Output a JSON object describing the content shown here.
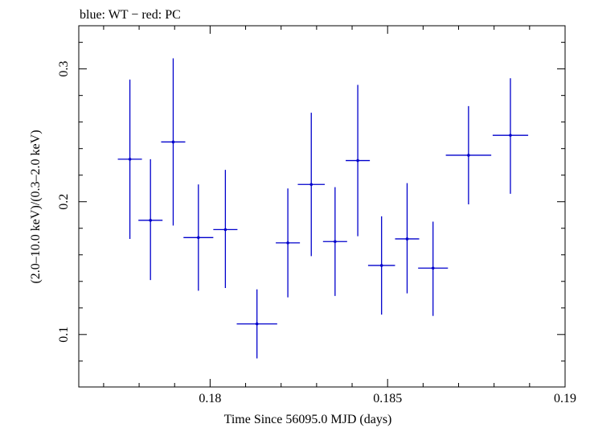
{
  "chart_data": {
    "type": "scatter",
    "title": "blue: WT − red: PC",
    "xlabel": "Time Since 56095.0 MJD (days)",
    "ylabel": "(2.0–10.0 keV)/(0.3–2.0 keV)",
    "xlim": [
      0.1763,
      0.19
    ],
    "ylim": [
      0.0605,
      0.3325
    ],
    "x_ticks": [
      {
        "value": 0.18,
        "label": "0.18"
      },
      {
        "value": 0.185,
        "label": "0.185"
      },
      {
        "value": 0.19,
        "label": "0.19"
      }
    ],
    "y_ticks": [
      {
        "value": 0.1,
        "label": "0.1"
      },
      {
        "value": 0.2,
        "label": "0.2"
      },
      {
        "value": 0.3,
        "label": "0.3"
      }
    ],
    "x_minor_step": 0.001,
    "y_minor_step": 0.02,
    "grid": false,
    "series": [
      {
        "color": "#0000cc",
        "points": [
          {
            "x": 0.17774,
            "xerr": 0.00034,
            "y": 0.232,
            "ylo": 0.172,
            "yhi": 0.292
          },
          {
            "x": 0.17832,
            "xerr": 0.00034,
            "y": 0.186,
            "ylo": 0.141,
            "yhi": 0.232
          },
          {
            "x": 0.17896,
            "xerr": 0.00034,
            "y": 0.245,
            "ylo": 0.182,
            "yhi": 0.308
          },
          {
            "x": 0.17967,
            "xerr": 0.00042,
            "y": 0.173,
            "ylo": 0.133,
            "yhi": 0.213
          },
          {
            "x": 0.18043,
            "xerr": 0.00034,
            "y": 0.179,
            "ylo": 0.135,
            "yhi": 0.224
          },
          {
            "x": 0.18132,
            "xerr": 0.00057,
            "y": 0.108,
            "ylo": 0.082,
            "yhi": 0.134
          },
          {
            "x": 0.18219,
            "xerr": 0.00034,
            "y": 0.169,
            "ylo": 0.128,
            "yhi": 0.21
          },
          {
            "x": 0.18285,
            "xerr": 0.00038,
            "y": 0.213,
            "ylo": 0.159,
            "yhi": 0.267
          },
          {
            "x": 0.18352,
            "xerr": 0.00034,
            "y": 0.17,
            "ylo": 0.129,
            "yhi": 0.211
          },
          {
            "x": 0.18416,
            "xerr": 0.00034,
            "y": 0.231,
            "ylo": 0.174,
            "yhi": 0.288
          },
          {
            "x": 0.18483,
            "xerr": 0.00038,
            "y": 0.152,
            "ylo": 0.115,
            "yhi": 0.189
          },
          {
            "x": 0.18555,
            "xerr": 0.00034,
            "y": 0.172,
            "ylo": 0.131,
            "yhi": 0.214
          },
          {
            "x": 0.18628,
            "xerr": 0.00042,
            "y": 0.15,
            "ylo": 0.114,
            "yhi": 0.185
          },
          {
            "x": 0.18728,
            "xerr": 0.00064,
            "y": 0.235,
            "ylo": 0.198,
            "yhi": 0.272
          },
          {
            "x": 0.18846,
            "xerr": 0.0005,
            "y": 0.25,
            "ylo": 0.206,
            "yhi": 0.293
          }
        ]
      }
    ]
  }
}
